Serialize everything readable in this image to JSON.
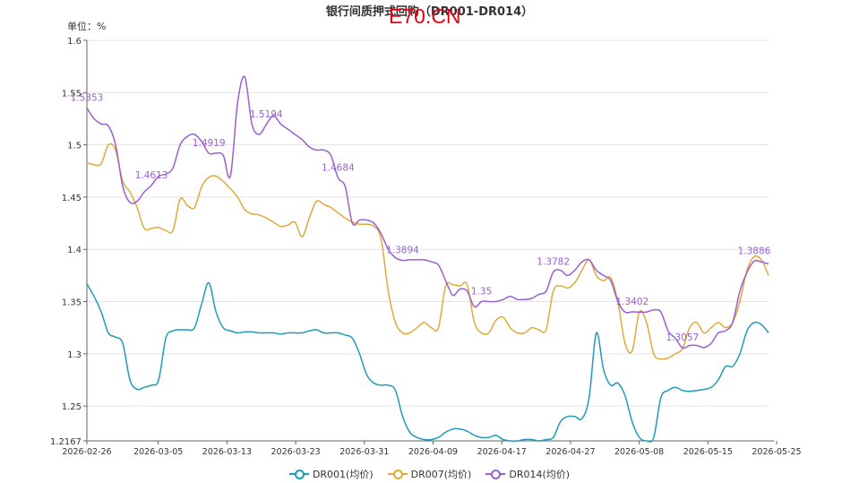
{
  "watermark": "E70.CN",
  "chart_data": {
    "type": "line",
    "title": "银行间质押式回购（DR001-DR014）",
    "unit_label": "单位：%",
    "ylim": [
      1.2167,
      1.6
    ],
    "yticks": [
      {
        "v": 1.6,
        "label": "1.6"
      },
      {
        "v": 1.55,
        "label": "1.55"
      },
      {
        "v": 1.5,
        "label": "1.5"
      },
      {
        "v": 1.45,
        "label": "1.45"
      },
      {
        "v": 1.4,
        "label": "1.4"
      },
      {
        "v": 1.35,
        "label": "1.35"
      },
      {
        "v": 1.3,
        "label": "1.3"
      },
      {
        "v": 1.25,
        "label": "1.25"
      },
      {
        "v": 1.2167,
        "label": "1.2167"
      }
    ],
    "x_tick_labels": [
      "2026-02-26",
      "2026-03-05",
      "2026-03-13",
      "2026-03-23",
      "2026-03-31",
      "2026-04-09",
      "2026-04-17",
      "2026-04-27",
      "2026-05-08",
      "2026-05-15",
      "2026-05-25"
    ],
    "grid": "horizontal",
    "legend_position": "bottom",
    "series": [
      {
        "name": "DR001(均价)",
        "color": "#1f9bb8",
        "values": [
          1.367,
          1.355,
          1.34,
          1.32,
          1.316,
          1.31,
          1.275,
          1.266,
          1.268,
          1.27,
          1.275,
          1.315,
          1.322,
          1.323,
          1.323,
          1.325,
          1.348,
          1.368,
          1.34,
          1.325,
          1.322,
          1.32,
          1.321,
          1.321,
          1.32,
          1.32,
          1.32,
          1.319,
          1.32,
          1.32,
          1.32,
          1.322,
          1.323,
          1.32,
          1.32,
          1.32,
          1.318,
          1.315,
          1.3,
          1.28,
          1.272,
          1.27,
          1.27,
          1.265,
          1.24,
          1.225,
          1.22,
          1.218,
          1.218,
          1.22,
          1.225,
          1.228,
          1.228,
          1.226,
          1.222,
          1.22,
          1.22,
          1.222,
          1.218,
          1.2167,
          1.2167,
          1.218,
          1.218,
          1.2167,
          1.218,
          1.22,
          1.235,
          1.24,
          1.24,
          1.238,
          1.258,
          1.32,
          1.285,
          1.27,
          1.272,
          1.26,
          1.235,
          1.22,
          1.2167,
          1.22,
          1.258,
          1.265,
          1.268,
          1.265,
          1.264,
          1.265,
          1.266,
          1.268,
          1.275,
          1.288,
          1.288,
          1.3,
          1.322,
          1.33,
          1.328,
          1.32
        ]
      },
      {
        "name": "DR007(均价)",
        "color": "#e0a93b",
        "values": [
          1.483,
          1.481,
          1.482,
          1.5,
          1.495,
          1.465,
          1.455,
          1.44,
          1.42,
          1.42,
          1.421,
          1.418,
          1.418,
          1.448,
          1.442,
          1.44,
          1.46,
          1.469,
          1.47,
          1.465,
          1.458,
          1.45,
          1.438,
          1.434,
          1.433,
          1.43,
          1.426,
          1.422,
          1.423,
          1.426,
          1.412,
          1.43,
          1.446,
          1.443,
          1.44,
          1.435,
          1.43,
          1.426,
          1.424,
          1.424,
          1.422,
          1.41,
          1.36,
          1.33,
          1.32,
          1.32,
          1.325,
          1.33,
          1.325,
          1.325,
          1.365,
          1.366,
          1.365,
          1.366,
          1.33,
          1.32,
          1.32,
          1.332,
          1.335,
          1.325,
          1.32,
          1.32,
          1.325,
          1.323,
          1.323,
          1.36,
          1.365,
          1.363,
          1.368,
          1.38,
          1.39,
          1.375,
          1.37,
          1.373,
          1.35,
          1.31,
          1.303,
          1.34,
          1.33,
          1.3,
          1.295,
          1.296,
          1.3,
          1.305,
          1.325,
          1.33,
          1.32,
          1.325,
          1.33,
          1.325,
          1.33,
          1.35,
          1.38,
          1.393,
          1.39,
          1.375
        ]
      },
      {
        "name": "DR014(均价)",
        "color": "#9a60d1",
        "values": [
          1.5353,
          1.525,
          1.52,
          1.518,
          1.5,
          1.46,
          1.445,
          1.446,
          1.455,
          1.4613,
          1.47,
          1.472,
          1.478,
          1.5,
          1.508,
          1.51,
          1.503,
          1.4919,
          1.492,
          1.49,
          1.47,
          1.54,
          1.565,
          1.52,
          1.51,
          1.5194,
          1.528,
          1.52,
          1.515,
          1.51,
          1.505,
          1.498,
          1.495,
          1.495,
          1.49,
          1.4684,
          1.46,
          1.425,
          1.428,
          1.428,
          1.425,
          1.415,
          1.4,
          1.392,
          1.3894,
          1.39,
          1.39,
          1.39,
          1.388,
          1.385,
          1.37,
          1.356,
          1.362,
          1.36,
          1.345,
          1.35,
          1.35,
          1.35,
          1.352,
          1.355,
          1.352,
          1.352,
          1.353,
          1.357,
          1.36,
          1.3782,
          1.38,
          1.375,
          1.38,
          1.388,
          1.39,
          1.38,
          1.375,
          1.37,
          1.35,
          1.34,
          1.3402,
          1.34,
          1.34,
          1.342,
          1.34,
          1.322,
          1.315,
          1.3057,
          1.308,
          1.308,
          1.306,
          1.31,
          1.32,
          1.322,
          1.33,
          1.36,
          1.378,
          1.3886,
          1.388,
          1.386
        ]
      }
    ],
    "annotations": [
      {
        "series": 2,
        "i": 0,
        "label": "1.5353"
      },
      {
        "series": 2,
        "i": 9,
        "label": "1.4613"
      },
      {
        "series": 2,
        "i": 17,
        "label": "1.4919"
      },
      {
        "series": 2,
        "i": 25,
        "label": "1.5194"
      },
      {
        "series": 2,
        "i": 35,
        "label": "1.4684"
      },
      {
        "series": 2,
        "i": 44,
        "label": "1.3894"
      },
      {
        "series": 2,
        "i": 55,
        "label": "1.35"
      },
      {
        "series": 2,
        "i": 65,
        "label": "1.3782"
      },
      {
        "series": 2,
        "i": 76,
        "label": "1.3402"
      },
      {
        "series": 2,
        "i": 83,
        "label": "1.3057"
      },
      {
        "series": 2,
        "i": 93,
        "label": "1.3886"
      }
    ]
  }
}
